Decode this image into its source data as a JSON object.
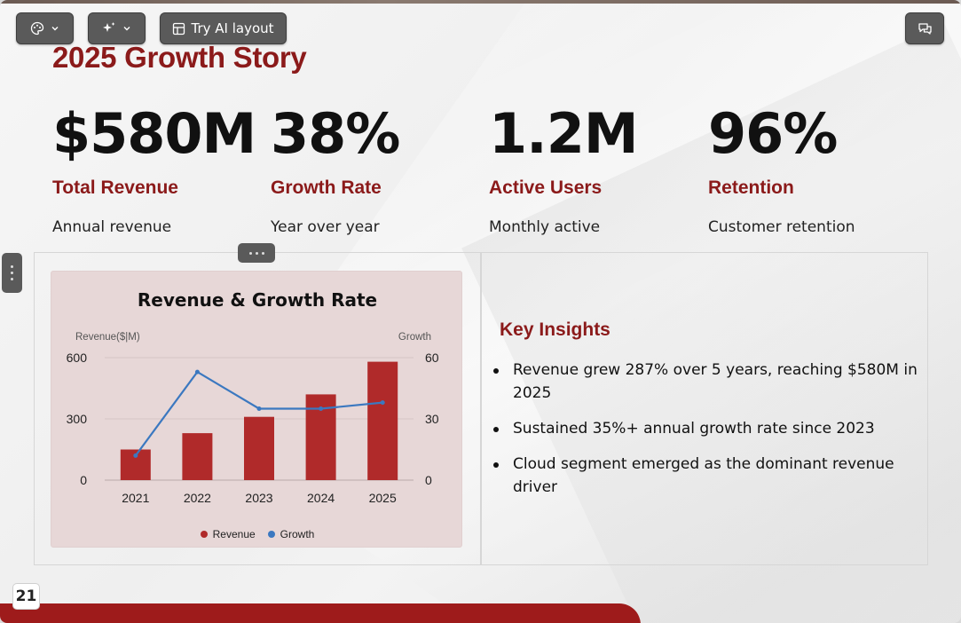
{
  "toolbar": {
    "theme_icon": "palette-icon",
    "ai_icon": "sparkles-icon",
    "try_ai_label": "Try AI layout",
    "comments_icon": "comments-icon"
  },
  "slide": {
    "title": "2025 Growth Story",
    "page_number": "21",
    "stats": [
      {
        "value": "$580M",
        "label": "Total Revenue",
        "sub": "Annual revenue"
      },
      {
        "value": "38%",
        "label": "Growth Rate",
        "sub": "Year over year"
      },
      {
        "value": "1.2M",
        "label": "Active Users",
        "sub": "Monthly active"
      },
      {
        "value": "96%",
        "label": "Retention",
        "sub": "Customer retention"
      }
    ],
    "insights_title": "Key Insights",
    "insights": [
      "Revenue grew 287% over 5 years, reaching $580M in 2025",
      "Sustained 35%+ annual growth rate since 2023",
      "Cloud segment emerged as the dominant revenue driver"
    ]
  },
  "colors": {
    "accent": "#8b1a1a",
    "bar": "#b02a2a",
    "line": "#3b78c0",
    "footer": "#9e1b1b"
  },
  "chart_data": {
    "type": "bar",
    "title": "Revenue & Growth Rate",
    "categories": [
      "2021",
      "2022",
      "2023",
      "2024",
      "2025"
    ],
    "y_left_label": "Revenue($|M)",
    "y_right_label": "Growth",
    "y_left_ticks": [
      "600",
      "300",
      "0"
    ],
    "y_right_ticks": [
      "60",
      "30",
      "0"
    ],
    "ylim_left": [
      0,
      600
    ],
    "ylim_right": [
      0,
      60
    ],
    "grid": true,
    "legend_position": "bottom",
    "series": [
      {
        "name": "Revenue",
        "kind": "bar",
        "axis": "left",
        "values": [
          150,
          230,
          310,
          420,
          580
        ]
      },
      {
        "name": "Growth",
        "kind": "line",
        "axis": "right",
        "values": [
          12,
          53,
          35,
          35,
          38
        ]
      }
    ]
  }
}
